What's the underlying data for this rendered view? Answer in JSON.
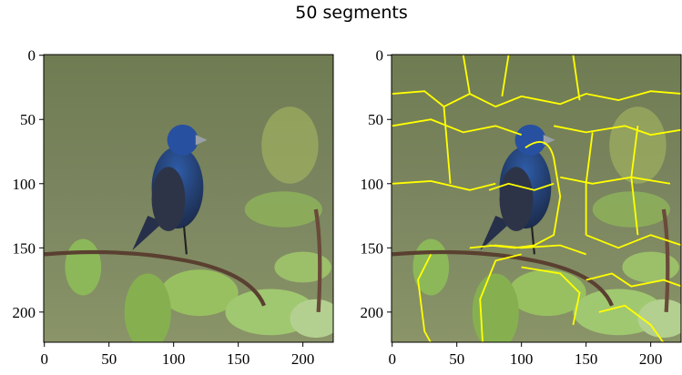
{
  "title": "50 segments",
  "chart_data": [
    {
      "type": "image",
      "xlim": [
        -0.5,
        223.5
      ],
      "ylim": [
        223.5,
        -0.5
      ],
      "xticks": [
        0,
        50,
        100,
        150,
        200
      ],
      "yticks": [
        0,
        50,
        100,
        150,
        200
      ],
      "segment_boundaries": false
    },
    {
      "type": "image",
      "xlim": [
        -0.5,
        223.5
      ],
      "ylim": [
        223.5,
        -0.5
      ],
      "xticks": [
        0,
        50,
        100,
        150,
        200
      ],
      "yticks": [
        0,
        50,
        100,
        150,
        200
      ],
      "segment_boundaries": true
    }
  ]
}
